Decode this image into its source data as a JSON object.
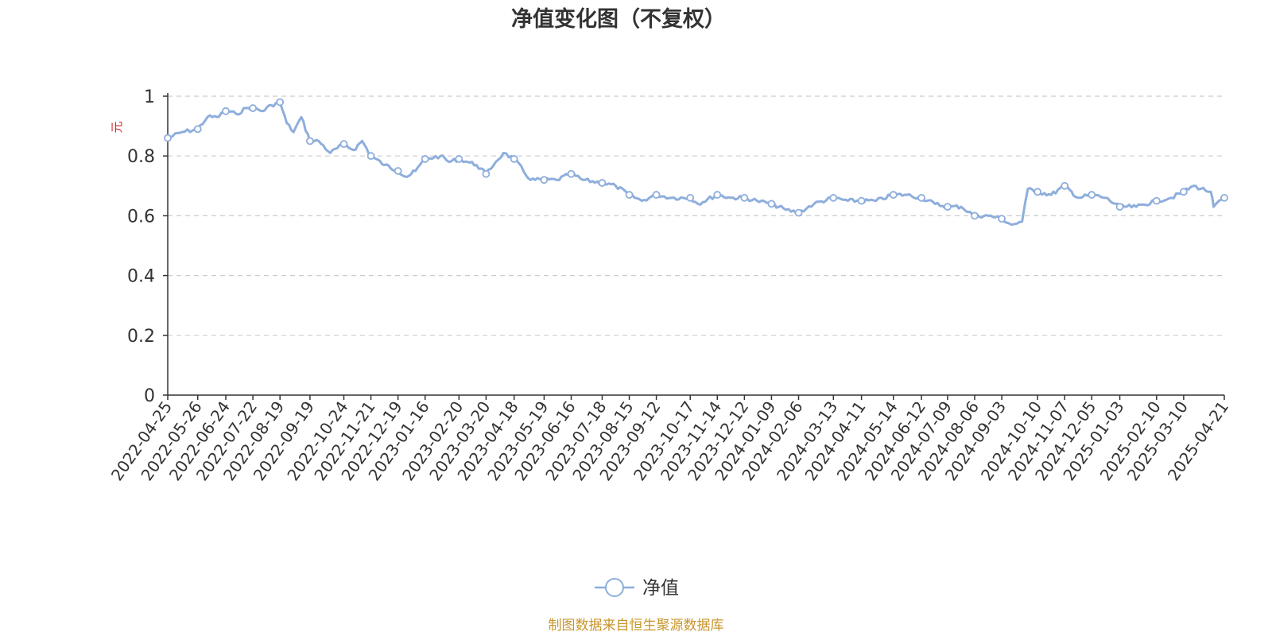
{
  "chart_data": {
    "type": "line",
    "title": "净值变化图（不复权）",
    "ylabel": "元",
    "xlabel": "",
    "ylim": [
      0,
      1
    ],
    "yticks": [
      "0",
      "0.2",
      "0.4",
      "0.6",
      "0.8",
      "1"
    ],
    "grid": true,
    "legend_position": "bottom-center",
    "x_tick_labels": [
      "2022-04-25",
      "2022-05-26",
      "2022-06-24",
      "2022-07-22",
      "2022-08-19",
      "2022-09-19",
      "2022-10-24",
      "2022-11-21",
      "2022-12-19",
      "2023-01-16",
      "2023-02-20",
      "2023-03-20",
      "2023-04-18",
      "2023-05-19",
      "2023-06-16",
      "2023-07-18",
      "2023-08-15",
      "2023-09-12",
      "2023-10-17",
      "2023-11-14",
      "2023-12-12",
      "2024-01-09",
      "2024-02-06",
      "2024-03-13",
      "2024-04-11",
      "2024-05-14",
      "2024-06-12",
      "2024-07-09",
      "2024-08-06",
      "2024-09-03",
      "2024-10-10",
      "2024-11-07",
      "2024-12-05",
      "2025-01-03",
      "2025-02-10",
      "2025-03-10",
      "2025-04-21"
    ],
    "series": [
      {
        "name": "净值",
        "color": "#8eaedc",
        "values": [
          [
            "2022-04-25",
            0.86
          ],
          [
            "2022-05-10",
            0.88
          ],
          [
            "2022-05-26",
            0.89
          ],
          [
            "2022-06-05",
            0.93
          ],
          [
            "2022-06-15",
            0.93
          ],
          [
            "2022-06-24",
            0.95
          ],
          [
            "2022-07-05",
            0.94
          ],
          [
            "2022-07-15",
            0.96
          ],
          [
            "2022-07-22",
            0.96
          ],
          [
            "2022-08-01",
            0.95
          ],
          [
            "2022-08-10",
            0.97
          ],
          [
            "2022-08-19",
            0.98
          ],
          [
            "2022-08-26",
            0.91
          ],
          [
            "2022-09-02",
            0.88
          ],
          [
            "2022-09-10",
            0.93
          ],
          [
            "2022-09-19",
            0.85
          ],
          [
            "2022-09-28",
            0.85
          ],
          [
            "2022-10-10",
            0.81
          ],
          [
            "2022-10-24",
            0.84
          ],
          [
            "2022-11-03",
            0.82
          ],
          [
            "2022-11-12",
            0.85
          ],
          [
            "2022-11-21",
            0.8
          ],
          [
            "2022-12-05",
            0.77
          ],
          [
            "2022-12-19",
            0.75
          ],
          [
            "2022-12-28",
            0.73
          ],
          [
            "2023-01-06",
            0.75
          ],
          [
            "2023-01-16",
            0.79
          ],
          [
            "2023-02-01",
            0.8
          ],
          [
            "2023-02-10",
            0.78
          ],
          [
            "2023-02-20",
            0.79
          ],
          [
            "2023-03-01",
            0.78
          ],
          [
            "2023-03-10",
            0.77
          ],
          [
            "2023-03-20",
            0.74
          ],
          [
            "2023-03-30",
            0.78
          ],
          [
            "2023-04-07",
            0.81
          ],
          [
            "2023-04-18",
            0.79
          ],
          [
            "2023-05-05",
            0.72
          ],
          [
            "2023-05-19",
            0.72
          ],
          [
            "2023-06-01",
            0.72
          ],
          [
            "2023-06-16",
            0.74
          ],
          [
            "2023-06-28",
            0.72
          ],
          [
            "2023-07-18",
            0.71
          ],
          [
            "2023-08-01",
            0.7
          ],
          [
            "2023-08-15",
            0.67
          ],
          [
            "2023-08-28",
            0.65
          ],
          [
            "2023-09-12",
            0.67
          ],
          [
            "2023-09-28",
            0.66
          ],
          [
            "2023-10-17",
            0.66
          ],
          [
            "2023-10-25",
            0.64
          ],
          [
            "2023-11-14",
            0.67
          ],
          [
            "2023-11-28",
            0.66
          ],
          [
            "2023-12-12",
            0.66
          ],
          [
            "2023-12-25",
            0.65
          ],
          [
            "2024-01-09",
            0.64
          ],
          [
            "2024-01-24",
            0.62
          ],
          [
            "2024-02-06",
            0.61
          ],
          [
            "2024-02-22",
            0.64
          ],
          [
            "2024-03-13",
            0.66
          ],
          [
            "2024-03-28",
            0.65
          ],
          [
            "2024-04-11",
            0.65
          ],
          [
            "2024-04-26",
            0.65
          ],
          [
            "2024-05-14",
            0.67
          ],
          [
            "2024-05-28",
            0.67
          ],
          [
            "2024-06-12",
            0.66
          ],
          [
            "2024-06-26",
            0.64
          ],
          [
            "2024-07-09",
            0.63
          ],
          [
            "2024-07-23",
            0.63
          ],
          [
            "2024-08-06",
            0.6
          ],
          [
            "2024-08-20",
            0.6
          ],
          [
            "2024-09-03",
            0.59
          ],
          [
            "2024-09-13",
            0.57
          ],
          [
            "2024-09-24",
            0.58
          ],
          [
            "2024-09-30",
            0.69
          ],
          [
            "2024-10-10",
            0.68
          ],
          [
            "2024-10-24",
            0.67
          ],
          [
            "2024-11-07",
            0.7
          ],
          [
            "2024-11-21",
            0.66
          ],
          [
            "2024-12-05",
            0.67
          ],
          [
            "2024-12-19",
            0.66
          ],
          [
            "2025-01-03",
            0.63
          ],
          [
            "2025-01-20",
            0.63
          ],
          [
            "2025-02-10",
            0.65
          ],
          [
            "2025-02-25",
            0.66
          ],
          [
            "2025-03-10",
            0.68
          ],
          [
            "2025-03-20",
            0.7
          ],
          [
            "2025-04-07",
            0.68
          ],
          [
            "2025-04-10",
            0.63
          ],
          [
            "2025-04-21",
            0.66
          ]
        ]
      }
    ]
  },
  "footer": {
    "source_text": "制图数据来自恒生聚源数据库"
  }
}
